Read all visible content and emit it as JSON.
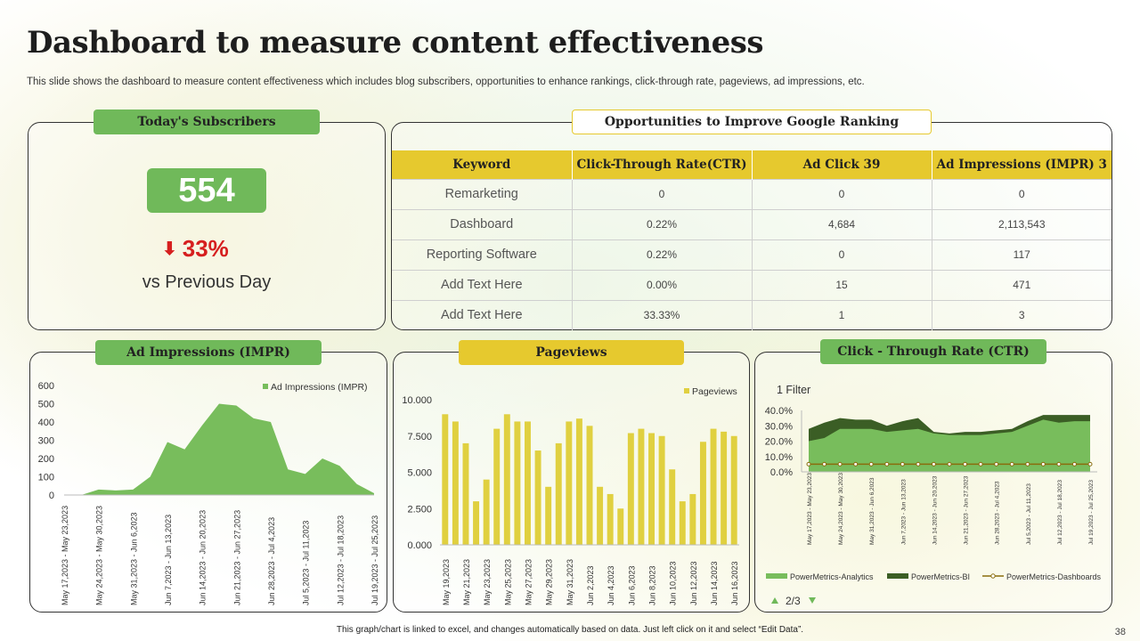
{
  "title": "Dashboard to measure content effectiveness",
  "subtitle": "This slide shows the dashboard to measure content effectiveness which includes blog subscribers, opportunities to enhance rankings, click-through rate, pageviews, ad impressions, etc.",
  "subscribers": {
    "badge": "Today's Subscribers",
    "count": "554",
    "delta_icon": "⬇",
    "delta": "33%",
    "comparison": "vs Previous Day",
    "delta_color": "#d61f1f"
  },
  "ranking": {
    "badge": "Opportunities to Improve Google Ranking",
    "headers": [
      "Keyword",
      "Click-Through Rate(CTR)",
      "Ad Click 39",
      "Ad Impressions (IMPR) 3"
    ],
    "rows": [
      [
        "Remarketing",
        "0",
        "0",
        "0"
      ],
      [
        "Dashboard",
        "0.22%",
        "4,684",
        "2,113,543"
      ],
      [
        "Reporting Software",
        "0.22%",
        "0",
        "117"
      ],
      [
        "Add Text Here",
        "0.00%",
        "15",
        "471"
      ],
      [
        "Add Text Here",
        "33.33%",
        "1",
        "3"
      ]
    ]
  },
  "colors": {
    "green": "#70b95a",
    "dark_green": "#3b5e25",
    "yellow": "#e6c92e",
    "bar_yellow": "#e0d040",
    "area_green": "#78bd5c",
    "line_olive": "#8a6d0d"
  },
  "chart_data": [
    {
      "type": "area",
      "title": "Ad Impressions (IMPR)",
      "legend": "Ad Impressions (IMPR)",
      "ylim": [
        0,
        600
      ],
      "yticks": [
        "0",
        "100",
        "200",
        "300",
        "400",
        "500",
        "600"
      ],
      "categories": [
        "May 17,2023 - May 23,2023",
        "May 24,2023 - May 30,2023",
        "May 31,2023 - Jun 6,2023",
        "Jun 7,2023 - Jun 13,2023",
        "Jun 14,2023 - Jun 20,2023",
        "Jun 21,2023 - Jun 27,2023",
        "Jun 28,2023 - Jul 4,2023",
        "Jul 5,2023 - Jul 11,2023",
        "Jul 12,2023 - Jul 18,2023",
        "Jul 19,2023 - Jul 25,2023"
      ],
      "x": [
        0,
        0.5,
        1,
        1.5,
        2,
        2.5,
        3,
        3.5,
        4,
        4.5,
        5,
        5.5,
        6,
        6.5,
        7,
        7.5,
        8,
        8.5,
        9
      ],
      "values": [
        0,
        0,
        30,
        25,
        30,
        100,
        290,
        250,
        380,
        500,
        490,
        420,
        400,
        140,
        115,
        200,
        160,
        60,
        10
      ]
    },
    {
      "type": "bar",
      "title": "Pageviews",
      "legend": "Pageviews",
      "ylim": [
        0,
        10000
      ],
      "yticks": [
        "0.000",
        "2.500",
        "5.000",
        "7.500",
        "10.000"
      ],
      "tick_labels": [
        "May 19,2023",
        "May 21,2023",
        "May 23,2023",
        "May 25,2023",
        "May 27,2023",
        "May 29,2023",
        "May 31,2023",
        "Jun 2,2023",
        "Jun 4,2023",
        "Jun 6,2023",
        "Jun 8,2023",
        "Jun 10,2023",
        "Jun 12,2023",
        "Jun 14,2023",
        "Jun 16,2023"
      ],
      "values": [
        9000,
        8500,
        7000,
        3000,
        4500,
        8000,
        9000,
        8500,
        8500,
        6500,
        4000,
        7000,
        8500,
        8700,
        8200,
        4000,
        3500,
        2500,
        7700,
        8000,
        7700,
        7500,
        5200,
        3000,
        3500,
        7100,
        8000,
        7800,
        7500
      ]
    },
    {
      "type": "area",
      "title": "Click - Through Rate (CTR)",
      "filter_label": "1 Filter",
      "ylim": [
        0,
        40
      ],
      "yticks": [
        "0.0%",
        "10.0%",
        "20.0%",
        "30.0%",
        "40.0%"
      ],
      "categories": [
        "May 17,2023 - May 23,2023",
        "May 24,2023 - May 30,2023",
        "May 31,2023 - Jun 6,2023",
        "Jun 7,2023 - Jun 13,2023",
        "Jun 14,2023 - Jun 20,2023",
        "Jun 21,2023 - Jun 27,2023",
        "Jun 28,2023 - Jul 4,2023",
        "Jul 5,2023 - Jul 11,2023",
        "Jul 12,2023 - Jul 18,2023",
        "Jul 19,2023 - Jul 25,2023"
      ],
      "x": [
        0,
        0.5,
        1,
        1.5,
        2,
        2.5,
        3,
        3.5,
        4,
        4.5,
        5,
        5.5,
        6,
        6.5,
        7,
        7.5,
        8,
        8.5,
        9
      ],
      "series": [
        {
          "name": "PowerMetrics-Analytics",
          "values": [
            20,
            22,
            28,
            28,
            28,
            26,
            27,
            28,
            25,
            24,
            24,
            24,
            25,
            26,
            30,
            34,
            32,
            33,
            33
          ]
        },
        {
          "name": "PowerMetrics-BI",
          "values": [
            28,
            32,
            35,
            34,
            34,
            30,
            33,
            35,
            26,
            25,
            26,
            26,
            27,
            28,
            33,
            37,
            37,
            37,
            37
          ]
        },
        {
          "name": "PowerMetrics-Dashboards",
          "values": [
            5,
            5,
            5,
            5,
            5,
            5,
            5,
            5,
            5,
            5,
            5,
            5,
            5,
            5,
            5,
            5,
            5,
            5,
            5
          ]
        }
      ],
      "pager": "2/3"
    }
  ],
  "footer": "This graph/chart is linked to excel, and changes automatically based on data. Just left click on it and select “Edit Data”.",
  "page_number": "38"
}
